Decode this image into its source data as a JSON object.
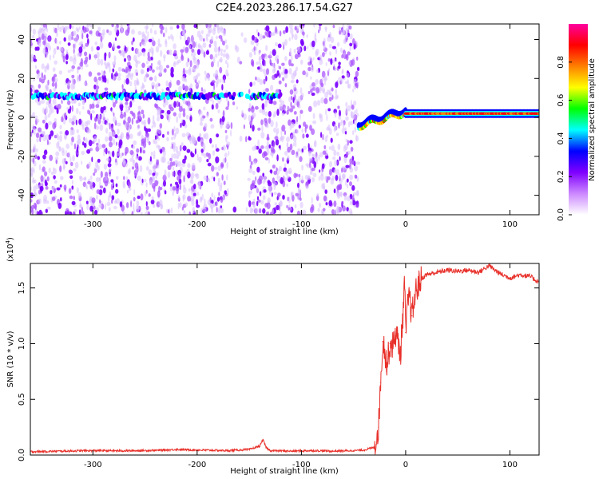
{
  "figure_title": "C2E4.2023.286.17.54.G27",
  "chart_data": [
    {
      "type": "heatmap",
      "xlabel": "Height of straight line (km)",
      "ylabel": "Frequency (Hz)",
      "xlim": [
        -360,
        128
      ],
      "ylim": [
        -50,
        48
      ],
      "x_ticks": [
        -300,
        -200,
        -100,
        0,
        100
      ],
      "x_tick_labels": [
        "-300",
        "-200",
        "-100",
        "0",
        "100"
      ],
      "y_ticks": [
        -40,
        -20,
        0,
        20,
        40
      ],
      "y_tick_labels": [
        "-40",
        "-20",
        "0",
        "20",
        "40"
      ],
      "colorbar": {
        "label": "Normalized spectral amplitude",
        "range": [
          0,
          1
        ],
        "ticks": [
          0,
          0.2,
          0.4,
          0.6,
          0.8
        ],
        "tick_labels": [
          "0.0",
          "0.2",
          "0.4",
          "0.6",
          "0.8"
        ],
        "colormap": [
          "#ffffff",
          "#cc88ff",
          "#8000ff",
          "#0000ff",
          "#00ffff",
          "#00ff00",
          "#ffff00",
          "#ff8000",
          "#ff0000",
          "#ff00a0"
        ]
      },
      "features": [
        {
          "x_range": [
            -360,
            -45
          ],
          "content": "scattered noise speckles"
        },
        {
          "x_range": [
            -360,
            -120
          ],
          "frequency": 11,
          "amplitude": 0.35
        },
        {
          "x_range": [
            -45,
            0
          ],
          "frequency_start": -5,
          "frequency_end": 2,
          "amplitude": 0.8
        },
        {
          "x_range": [
            0,
            128
          ],
          "frequency": 2,
          "amplitude": 0.9
        }
      ]
    },
    {
      "type": "line",
      "xlabel": "Height of straight line (km)",
      "ylabel": "SNR (10 * v/v)",
      "y_multiplier_label": "(x10",
      "y_multiplier_exponent": "4",
      "xlim": [
        -360,
        128
      ],
      "ylim": [
        0,
        17200
      ],
      "x_ticks": [
        -300,
        -200,
        -100,
        0,
        100
      ],
      "x_tick_labels": [
        "-300",
        "-200",
        "-100",
        "0",
        "100"
      ],
      "y_ticks": [
        0,
        5000,
        10000,
        15000
      ],
      "y_tick_labels": [
        "0.0",
        "0.5",
        "1.0",
        "1.5"
      ],
      "series_color": "#e8302a",
      "x": [
        -360,
        -330,
        -300,
        -270,
        -240,
        -220,
        -200,
        -170,
        -150,
        -140,
        -137,
        -134,
        -130,
        -110,
        -90,
        -70,
        -50,
        -40,
        -30,
        -26,
        -24,
        -22,
        -20,
        -18,
        -15,
        -12,
        -10,
        -8,
        -5,
        -3,
        -1,
        0,
        3,
        6,
        10,
        15,
        20,
        30,
        40,
        50,
        60,
        70,
        80,
        90,
        100,
        110,
        120,
        128
      ],
      "y": [
        300,
        350,
        400,
        380,
        420,
        500,
        450,
        400,
        500,
        800,
        1400,
        700,
        400,
        350,
        400,
        350,
        400,
        450,
        700,
        2500,
        6500,
        10200,
        9500,
        8000,
        10000,
        9800,
        11000,
        10500,
        9000,
        12000,
        15500,
        11000,
        14500,
        12500,
        14800,
        15800,
        16200,
        16400,
        16600,
        16500,
        16600,
        16400,
        17000,
        16300,
        15900,
        16200,
        16000,
        15500
      ]
    }
  ]
}
